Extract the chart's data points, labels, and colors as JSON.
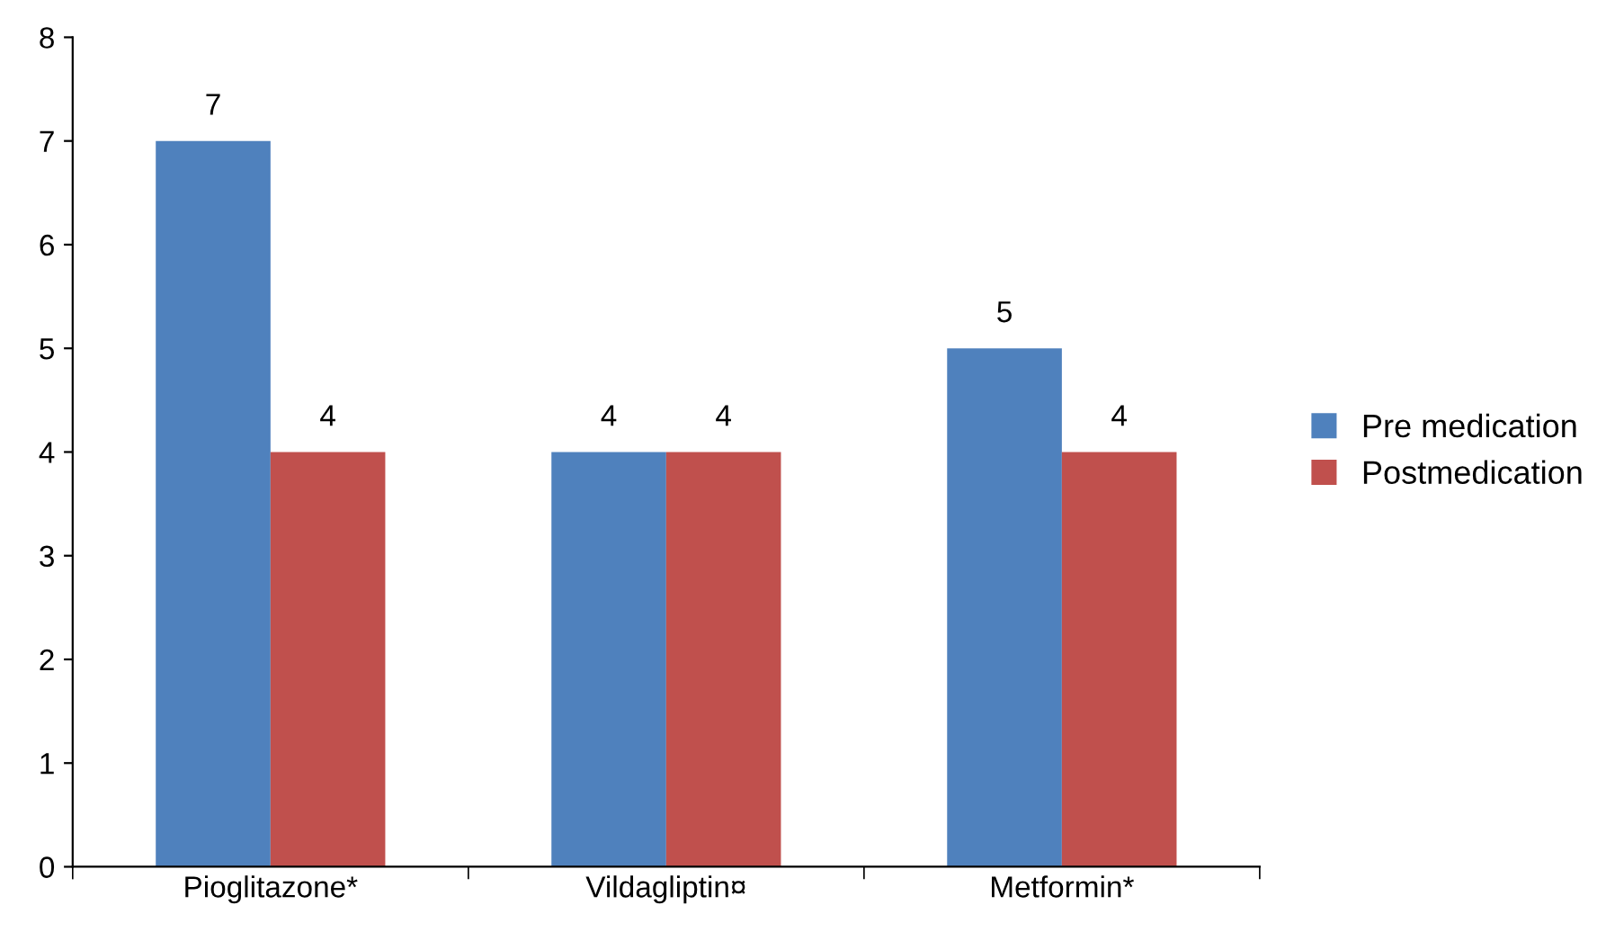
{
  "chart_data": {
    "type": "bar",
    "categories": [
      "Pioglitazone*",
      "Vildagliptin¤",
      "Metformin*"
    ],
    "series": [
      {
        "name": "Pre medication",
        "color": "#4f81bd",
        "values": [
          7,
          4,
          5
        ]
      },
      {
        "name": "Postmedication",
        "color": "#c0504d",
        "values": [
          4,
          4,
          4
        ]
      }
    ],
    "ylim": [
      0,
      8
    ],
    "yticks": [
      0,
      1,
      2,
      3,
      4,
      5,
      6,
      7,
      8
    ],
    "grid": false,
    "legend": "right",
    "data_labels": true
  }
}
